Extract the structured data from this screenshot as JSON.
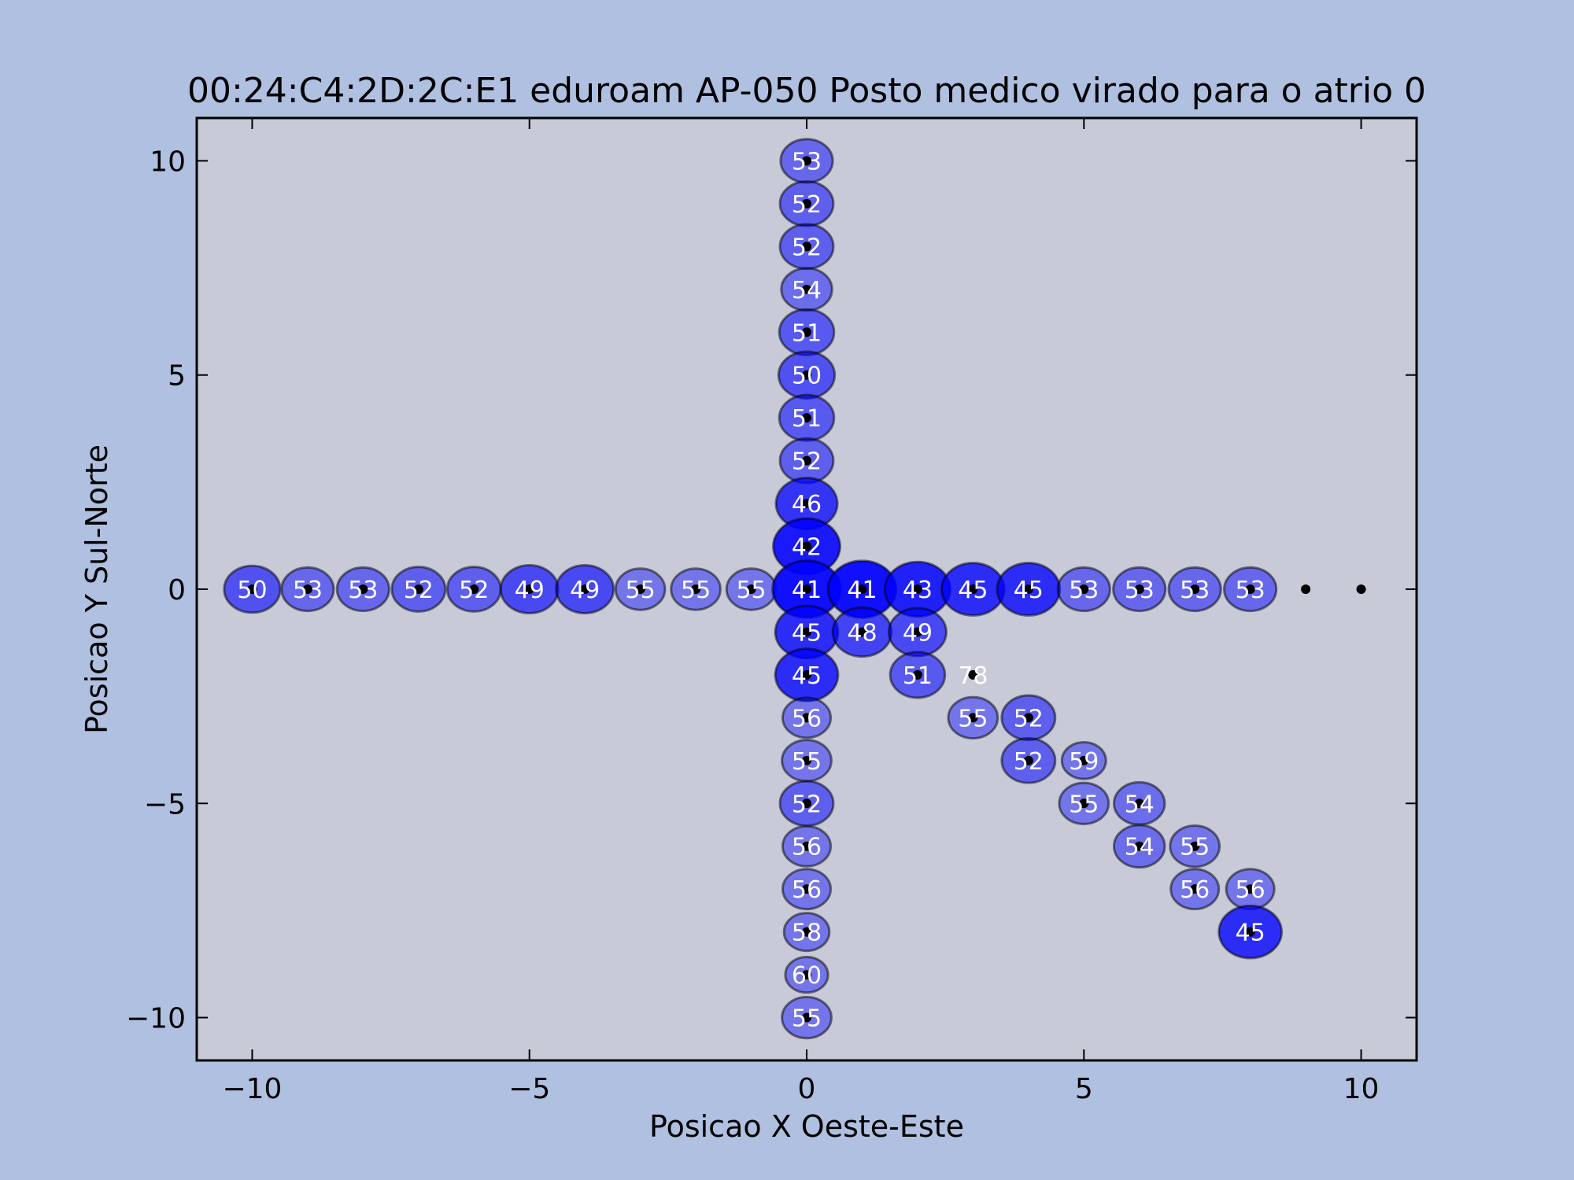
{
  "chart_data": {
    "type": "scatter",
    "title": "00:24:C4:2D:2C:E1 eduroam AP-050 Posto medico virado para o atrio  0",
    "xlabel": "Posicao X Oeste-Este",
    "ylabel": "Posicao Y Sul-Norte",
    "xlim": [
      -11,
      11
    ],
    "ylim": [
      -11,
      11
    ],
    "xticks": [
      -10,
      -5,
      0,
      5,
      10
    ],
    "yticks": [
      -10,
      -5,
      0,
      5,
      10
    ],
    "xtick_labels": [
      "−10",
      "−5",
      "0",
      "5",
      "10"
    ],
    "ytick_labels": [
      "−10",
      "−5",
      "0",
      "5",
      "10"
    ],
    "grid": false,
    "colors": {
      "figure_bg": "#b0c0e0",
      "plot_bg": "#c8cad8",
      "bubble_fill": "#0000ff",
      "bubble_edge": "#000000",
      "label": "#ffffff"
    },
    "points": [
      {
        "x": 0,
        "y": 10,
        "label": "53"
      },
      {
        "x": 0,
        "y": 9,
        "label": "52"
      },
      {
        "x": 0,
        "y": 8,
        "label": "52"
      },
      {
        "x": 0,
        "y": 7,
        "label": "54"
      },
      {
        "x": 0,
        "y": 6,
        "label": "51"
      },
      {
        "x": 0,
        "y": 5,
        "label": "50"
      },
      {
        "x": 0,
        "y": 4,
        "label": "51"
      },
      {
        "x": 0,
        "y": 3,
        "label": "52"
      },
      {
        "x": 0,
        "y": 2,
        "label": "46"
      },
      {
        "x": 0,
        "y": 1,
        "label": "42"
      },
      {
        "x": -10,
        "y": 0,
        "label": "50"
      },
      {
        "x": -9,
        "y": 0,
        "label": "53"
      },
      {
        "x": -8,
        "y": 0,
        "label": "53"
      },
      {
        "x": -7,
        "y": 0,
        "label": "52"
      },
      {
        "x": -6,
        "y": 0,
        "label": "52"
      },
      {
        "x": -5,
        "y": 0,
        "label": "49"
      },
      {
        "x": -4,
        "y": 0,
        "label": "49"
      },
      {
        "x": -3,
        "y": 0,
        "label": "55"
      },
      {
        "x": -2,
        "y": 0,
        "label": "55"
      },
      {
        "x": -1,
        "y": 0,
        "label": "55"
      },
      {
        "x": 0,
        "y": 0,
        "label": "41"
      },
      {
        "x": 1,
        "y": 0,
        "label": "41"
      },
      {
        "x": 2,
        "y": 0,
        "label": "43"
      },
      {
        "x": 3,
        "y": 0,
        "label": "45"
      },
      {
        "x": 4,
        "y": 0,
        "label": "45"
      },
      {
        "x": 5,
        "y": 0,
        "label": "53"
      },
      {
        "x": 6,
        "y": 0,
        "label": "53"
      },
      {
        "x": 7,
        "y": 0,
        "label": "53"
      },
      {
        "x": 8,
        "y": 0,
        "label": "53"
      },
      {
        "x": 9,
        "y": 0,
        "label": ""
      },
      {
        "x": 10,
        "y": 0,
        "label": ""
      },
      {
        "x": 0,
        "y": -1,
        "label": "45"
      },
      {
        "x": 1,
        "y": -1,
        "label": "48"
      },
      {
        "x": 2,
        "y": -1,
        "label": "49"
      },
      {
        "x": 0,
        "y": -2,
        "label": "45"
      },
      {
        "x": 2,
        "y": -2,
        "label": "51"
      },
      {
        "x": 3,
        "y": -2,
        "label": "78"
      },
      {
        "x": 0,
        "y": -3,
        "label": "56"
      },
      {
        "x": 3,
        "y": -3,
        "label": "55"
      },
      {
        "x": 4,
        "y": -3,
        "label": "52"
      },
      {
        "x": 0,
        "y": -4,
        "label": "55"
      },
      {
        "x": 4,
        "y": -4,
        "label": "52"
      },
      {
        "x": 5,
        "y": -4,
        "label": "59"
      },
      {
        "x": 0,
        "y": -5,
        "label": "52"
      },
      {
        "x": 5,
        "y": -5,
        "label": "55"
      },
      {
        "x": 6,
        "y": -5,
        "label": "54"
      },
      {
        "x": 0,
        "y": -6,
        "label": "56"
      },
      {
        "x": 6,
        "y": -6,
        "label": "54"
      },
      {
        "x": 7,
        "y": -6,
        "label": "55"
      },
      {
        "x": 0,
        "y": -7,
        "label": "56"
      },
      {
        "x": 7,
        "y": -7,
        "label": "56"
      },
      {
        "x": 8,
        "y": -7,
        "label": "56"
      },
      {
        "x": 0,
        "y": -8,
        "label": "58"
      },
      {
        "x": 8,
        "y": -8,
        "label": "45"
      },
      {
        "x": 0,
        "y": -9,
        "label": "60"
      },
      {
        "x": 0,
        "y": -10,
        "label": "55"
      }
    ]
  }
}
